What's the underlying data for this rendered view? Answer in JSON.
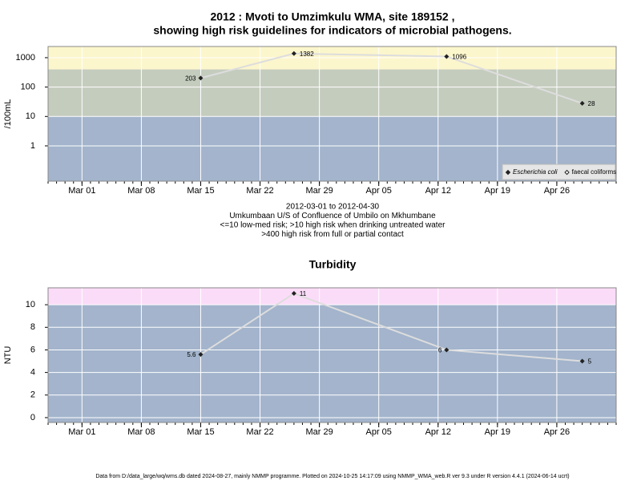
{
  "chart_data": [
    {
      "type": "line",
      "log_y": true,
      "title": [
        "2012 : Mvoti to Umzimkulu WMA, site 189152 ,",
        "showing high risk guidelines for indicators of microbial pathogens."
      ],
      "y_label": "/100mL",
      "x": [
        "2012-03-15",
        "2012-03-26",
        "2012-04-13",
        "2012-04-29"
      ],
      "series": [
        {
          "name": "Escherichia coli",
          "color": "#222222",
          "marker": "filled-diamond",
          "values": [
            203,
            1382,
            1096,
            28
          ]
        },
        {
          "name": "faecal coliforms",
          "color": "#222222",
          "marker": "open-diamond",
          "values": [
            null,
            null,
            null,
            null
          ]
        }
      ],
      "xlim": [
        "2012-02-26",
        "2012-05-03"
      ],
      "xticks": [
        {
          "value": "2012-03-01",
          "label": "Mar 01"
        },
        {
          "value": "2012-03-08",
          "label": "Mar 08"
        },
        {
          "value": "2012-03-15",
          "label": "Mar 15"
        },
        {
          "value": "2012-03-22",
          "label": "Mar 22"
        },
        {
          "value": "2012-03-29",
          "label": "Mar 29"
        },
        {
          "value": "2012-04-05",
          "label": "Apr 05"
        },
        {
          "value": "2012-04-12",
          "label": "Apr 12"
        },
        {
          "value": "2012-04-19",
          "label": "Apr 19"
        },
        {
          "value": "2012-04-26",
          "label": "Apr 26"
        }
      ],
      "ylim": [
        0.063,
        2400
      ],
      "yticks": [
        1,
        10,
        100,
        1000
      ],
      "bands": [
        {
          "to": 10,
          "color": "#a3b4cc"
        },
        {
          "to": 400,
          "color": "#c4ccbe"
        },
        {
          "to": 2400,
          "color": "#fcf6cc"
        }
      ],
      "grid": true,
      "legend": "bottom-right",
      "line_color": "#dddddd",
      "caption": [
        "2012-03-01 to 2012-04-30",
        "Umkumbaan U/S of Confluence of Umbilo on Mkhumbane",
        "<=10 low-med risk; >10 high risk when drinking untreated water",
        ">400 high risk from full or partial contact"
      ]
    },
    {
      "type": "line",
      "log_y": false,
      "title": [
        "Turbidity"
      ],
      "y_label": "NTU",
      "x": [
        "2012-03-15",
        "2012-03-26",
        "2012-04-13",
        "2012-04-29"
      ],
      "series": [
        {
          "name": "Turbidity",
          "color": "#222222",
          "marker": "filled-diamond",
          "values": [
            5.6,
            11,
            6,
            5
          ]
        }
      ],
      "xlim": [
        "2012-02-26",
        "2012-05-03"
      ],
      "xticks": [
        {
          "value": "2012-03-01",
          "label": "Mar 01"
        },
        {
          "value": "2012-03-08",
          "label": "Mar 08"
        },
        {
          "value": "2012-03-15",
          "label": "Mar 15"
        },
        {
          "value": "2012-03-22",
          "label": "Mar 22"
        },
        {
          "value": "2012-03-29",
          "label": "Mar 29"
        },
        {
          "value": "2012-04-05",
          "label": "Apr 05"
        },
        {
          "value": "2012-04-12",
          "label": "Apr 12"
        },
        {
          "value": "2012-04-19",
          "label": "Apr 19"
        },
        {
          "value": "2012-04-26",
          "label": "Apr 26"
        }
      ],
      "ylim": [
        -0.43,
        11.5
      ],
      "yticks": [
        0,
        2,
        4,
        6,
        8,
        10
      ],
      "bands": [
        {
          "to": 10,
          "color": "#a3b4cc"
        },
        {
          "to": 11.5,
          "color": "#fbdcf8"
        }
      ],
      "grid": true,
      "line_color": "#dddddd"
    }
  ],
  "footer": "Data from D:/data_large/wq/wms.db dated 2024-08-27, mainly NMMP programme. Plotted on 2024-10-25 14:17:09 using NMMP_WMA_web.R ver 9.3 under R version 4.4.1 (2024-06-14 ucrt)"
}
